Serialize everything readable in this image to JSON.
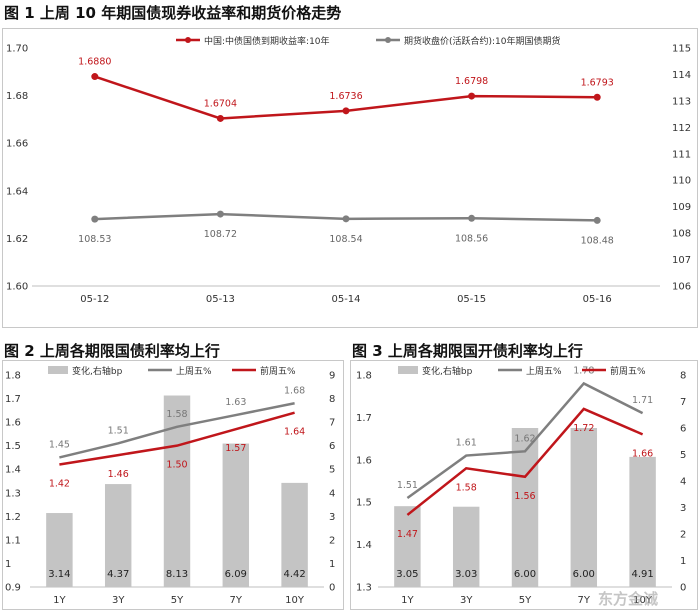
{
  "titles": {
    "chart1": "图 1  上周 10 年期国债现券收益率和期货价格走势",
    "chart2": "图 2  上周各期限国债利率均上行",
    "chart3": "图 3  上周各期限国开债利率均上行"
  },
  "watermark": "东方金诚",
  "colors": {
    "red": "#c0161b",
    "gray": "#7f7f7f",
    "bar": "#c4c4c4",
    "redlabel": "#c0161b"
  },
  "chart_data": [
    {
      "type": "line",
      "categories": [
        "05-12",
        "05-13",
        "05-14",
        "05-15",
        "05-16"
      ],
      "series": [
        {
          "name": "中国:中债国债到期收益率:10年",
          "axis": "left",
          "values": [
            1.688,
            1.6704,
            1.6736,
            1.6798,
            1.6793
          ],
          "labels": [
            "1.6880",
            "1.6704",
            "1.6736",
            "1.6798",
            "1.6793"
          ]
        },
        {
          "name": "期货收盘价(活跃合约):10年期国债期货",
          "axis": "right",
          "values": [
            108.53,
            108.72,
            108.54,
            108.56,
            108.48
          ],
          "labels": [
            "108.53",
            "108.72",
            "108.54",
            "108.56",
            "108.48"
          ]
        }
      ],
      "ylim_left": [
        1.6,
        1.7
      ],
      "yticks_left": [
        "1.60",
        "1.62",
        "1.64",
        "1.66",
        "1.68",
        "1.70"
      ],
      "ylim_right": [
        106,
        115
      ],
      "yticks_right": [
        "106",
        "107",
        "108",
        "109",
        "110",
        "111",
        "112",
        "113",
        "114",
        "115"
      ],
      "legend": "top"
    },
    {
      "type": "bar+line",
      "categories": [
        "1Y",
        "3Y",
        "5Y",
        "7Y",
        "10Y"
      ],
      "bars": {
        "name": "变化,右轴bp",
        "values": [
          3.14,
          4.37,
          8.13,
          6.09,
          4.42
        ],
        "labels": [
          "3.14",
          "4.37",
          "8.13",
          "6.09",
          "4.42"
        ]
      },
      "series": [
        {
          "name": "上周五%",
          "values": [
            1.45,
            1.51,
            1.58,
            1.63,
            1.68
          ],
          "labels": [
            "1.45",
            "1.51",
            "1.58",
            "1.63",
            "1.68"
          ]
        },
        {
          "name": "前周五%",
          "values": [
            1.42,
            1.46,
            1.5,
            1.57,
            1.64
          ],
          "labels": [
            "1.42",
            "1.46",
            "1.50",
            "1.57",
            "1.64"
          ]
        }
      ],
      "ylim_left": [
        0.9,
        1.8
      ],
      "yticks_left": [
        "0.9",
        "1",
        "1.1",
        "1.2",
        "1.3",
        "1.4",
        "1.5",
        "1.6",
        "1.7",
        "1.8"
      ],
      "ylim_right": [
        0,
        9
      ],
      "yticks_right": [
        "0",
        "1",
        "2",
        "3",
        "4",
        "5",
        "6",
        "7",
        "8",
        "9"
      ],
      "legend": "top"
    },
    {
      "type": "bar+line",
      "categories": [
        "1Y",
        "3Y",
        "5Y",
        "7Y",
        "10Y"
      ],
      "bars": {
        "name": "变化,右轴bp",
        "values": [
          3.05,
          3.03,
          6.0,
          6.0,
          4.91
        ],
        "labels": [
          "3.05",
          "3.03",
          "6.00",
          "6.00",
          "4.91"
        ]
      },
      "series": [
        {
          "name": "上周五%",
          "values": [
            1.51,
            1.61,
            1.62,
            1.78,
            1.71
          ],
          "labels": [
            "1.51",
            "1.61",
            "1.62",
            "1.78",
            "1.71"
          ]
        },
        {
          "name": "前周五%",
          "values": [
            1.47,
            1.58,
            1.56,
            1.72,
            1.66
          ],
          "labels": [
            "1.47",
            "1.58",
            "1.56",
            "1.72",
            "1.66"
          ]
        }
      ],
      "ylim_left": [
        1.3,
        1.8
      ],
      "yticks_left": [
        "1.3",
        "1.4",
        "1.5",
        "1.6",
        "1.7",
        "1.8"
      ],
      "ylim_right": [
        0,
        8
      ],
      "yticks_right": [
        "0",
        "1",
        "2",
        "3",
        "4",
        "5",
        "6",
        "7",
        "8"
      ],
      "legend": "top"
    }
  ]
}
